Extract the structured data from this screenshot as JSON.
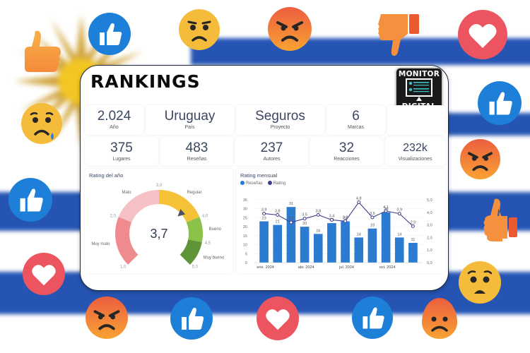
{
  "header": {
    "title": "RANKINGS",
    "logo": {
      "line1": "MONITOR",
      "line2": "DIGITAL"
    }
  },
  "kpis_row1": [
    {
      "value": "2.024",
      "label": "Año"
    },
    {
      "value": "Uruguay",
      "label": "País"
    },
    {
      "value": "Seguros",
      "label": "Proyecto"
    },
    {
      "value": "6",
      "label": "Marcas"
    },
    {
      "value": "",
      "label": ""
    }
  ],
  "kpis_row2": [
    {
      "value": "375",
      "label": "Lugares"
    },
    {
      "value": "483",
      "label": "Reseñas"
    },
    {
      "value": "237",
      "label": "Autores"
    },
    {
      "value": "32",
      "label": "Reacciones"
    },
    {
      "value": "232k",
      "label": "Visualizaciones"
    }
  ],
  "gauge": {
    "title": "Rating del año",
    "value_label": "3,7",
    "value": 3.7,
    "min": 1.0,
    "max": 5.0,
    "ticks": [
      "1,0",
      "2,0",
      "3,0",
      "4,0",
      "4,5",
      "5,0"
    ],
    "bands": [
      {
        "label": "Muy malo",
        "from": 1.0,
        "to": 2.0,
        "color": "#ef8b8f"
      },
      {
        "label": "Malo",
        "from": 2.0,
        "to": 3.0,
        "color": "#f6c1c4"
      },
      {
        "label": "Regular",
        "from": 3.0,
        "to": 4.0,
        "color": "#f5c136"
      },
      {
        "label": "Bueno",
        "from": 4.0,
        "to": 4.5,
        "color": "#8bc34a"
      },
      {
        "label": "Muy bueno",
        "from": 4.5,
        "to": 5.0,
        "color": "#5f9437"
      }
    ]
  },
  "monthly": {
    "title": "Rating mensual",
    "legend": [
      {
        "label": "Reseñas",
        "color": "#2b7bd0"
      },
      {
        "label": "Rating",
        "color": "#3f3f8a"
      }
    ]
  },
  "chart_data": [
    {
      "type": "gauge",
      "title": "Rating del año",
      "value": 3.7,
      "range": [
        1.0,
        5.0
      ],
      "bands": [
        {
          "label": "Muy malo",
          "range": [
            1.0,
            2.0
          ]
        },
        {
          "label": "Malo",
          "range": [
            2.0,
            3.0
          ]
        },
        {
          "label": "Regular",
          "range": [
            3.0,
            4.0
          ]
        },
        {
          "label": "Bueno",
          "range": [
            4.0,
            4.5
          ]
        },
        {
          "label": "Muy bueno",
          "range": [
            4.5,
            5.0
          ]
        }
      ]
    },
    {
      "type": "bar",
      "title": "Rating mensual",
      "categories": [
        "ene. 2024",
        "feb. 2024",
        "mar. 2024",
        "abr. 2024",
        "may. 2024",
        "jun. 2024",
        "jul. 2024",
        "ago. 2024",
        "sep. 2024",
        "oct. 2024",
        "nov. 2024",
        "dic. 2024"
      ],
      "x_tick_labels": [
        "ene. 2024",
        "abr. 2024",
        "jul. 2024",
        "oct. 2024"
      ],
      "series": [
        {
          "name": "Reseñas",
          "type": "bar",
          "axis": "left",
          "values": [
            23,
            21,
            31,
            20,
            16,
            22,
            23,
            14,
            19,
            28,
            14,
            11
          ]
        },
        {
          "name": "Rating",
          "type": "line",
          "axis": "right",
          "values": [
            3.9,
            3.8,
            3.2,
            3.5,
            3.8,
            3.4,
            3.3,
            4.8,
            3.6,
            4.1,
            3.9,
            2.9
          ]
        }
      ],
      "y_left": {
        "ticks": [
          0,
          5,
          10,
          15,
          20,
          25,
          30,
          35
        ],
        "range": [
          0,
          35
        ]
      },
      "y_right": {
        "ticks": [
          "0,0",
          "1,0",
          "2,0",
          "3,0",
          "4,0",
          "5,0"
        ],
        "range": [
          0,
          5.0
        ]
      },
      "legend_position": "top-left",
      "grid": true
    }
  ],
  "reactions": [
    "thumbs-up",
    "like",
    "angry",
    "angry",
    "thumbs-down",
    "love",
    "sad",
    "like",
    "angry",
    "like",
    "thumbs-up",
    "love",
    "wow",
    "angry",
    "like",
    "love",
    "like",
    "angry"
  ]
}
